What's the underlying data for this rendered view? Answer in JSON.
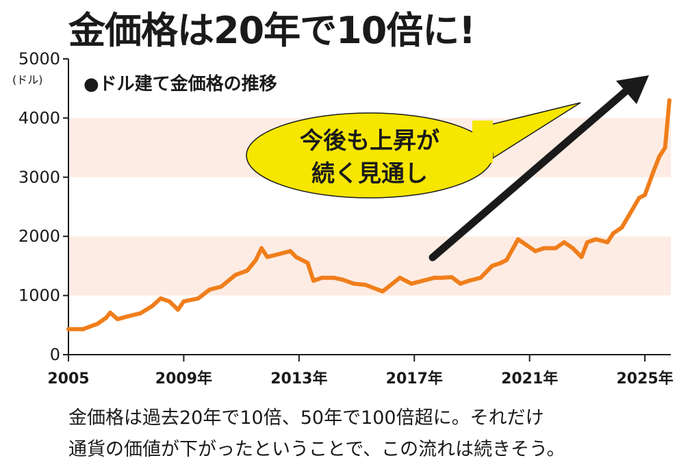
{
  "headline": "金価格は20年で10倍に!",
  "caption": {
    "line1": "金価格は過去20年で10倍、50年で100倍超に。それだけ",
    "line2": "通貨の価値が下がったということで、この流れは続きそう。"
  },
  "colors": {
    "line": "#f07e1b",
    "band": "#fdece4",
    "bubble": "#f6e600",
    "arrow": "#1a1a1a",
    "text": "#1a1a1a"
  },
  "chart_data": {
    "type": "line",
    "title": "●ドル建て金価格の推移",
    "ylabel": "(ドル)",
    "ylim": [
      0,
      5000
    ],
    "yticks": [
      0,
      1000,
      2000,
      3000,
      4000,
      5000
    ],
    "xlim": [
      2005,
      2025.9
    ],
    "xticks": [
      {
        "value": 2005,
        "label": "2005"
      },
      {
        "value": 2009,
        "label": "2009年"
      },
      {
        "value": 2013,
        "label": "2013年"
      },
      {
        "value": 2017,
        "label": "2017年"
      },
      {
        "value": 2021,
        "label": "2021年"
      },
      {
        "value": 2025,
        "label": "2025年"
      }
    ],
    "grid": "alternating horizontal bands",
    "annotation": {
      "line1": "今後も上昇が",
      "line2": "続く見通し"
    },
    "series": [
      {
        "x": [
          2005.0,
          2005.5,
          2006.0,
          2006.3,
          2006.45,
          2006.7,
          2007.0,
          2007.5,
          2007.9,
          2008.2,
          2008.5,
          2008.8,
          2009.0,
          2009.5,
          2009.9,
          2010.3,
          2010.8,
          2011.2,
          2011.5,
          2011.7,
          2011.9,
          2012.3,
          2012.7,
          2012.9,
          2013.3,
          2013.5,
          2013.8,
          2014.2,
          2014.5,
          2014.9,
          2015.3,
          2015.9,
          2016.5,
          2016.9,
          2017.3,
          2017.7,
          2017.95,
          2018.3,
          2018.6,
          2018.9,
          2019.3,
          2019.7,
          2020.0,
          2020.2,
          2020.6,
          2020.9,
          2021.2,
          2021.5,
          2021.9,
          2022.2,
          2022.5,
          2022.8,
          2023.0,
          2023.3,
          2023.7,
          2023.9,
          2024.2,
          2024.5,
          2024.8,
          2025.0,
          2025.3,
          2025.5,
          2025.7,
          2025.85
        ],
        "y": [
          430,
          430,
          520,
          620,
          710,
          600,
          640,
          700,
          820,
          950,
          900,
          760,
          900,
          950,
          1100,
          1150,
          1350,
          1420,
          1600,
          1800,
          1650,
          1700,
          1750,
          1650,
          1550,
          1250,
          1300,
          1300,
          1270,
          1200,
          1180,
          1070,
          1300,
          1200,
          1250,
          1300,
          1300,
          1310,
          1200,
          1250,
          1300,
          1500,
          1550,
          1600,
          1950,
          1850,
          1750,
          1800,
          1800,
          1900,
          1800,
          1650,
          1900,
          1950,
          1900,
          2050,
          2150,
          2400,
          2650,
          2700,
          3100,
          3350,
          3500,
          4300
        ]
      }
    ]
  }
}
